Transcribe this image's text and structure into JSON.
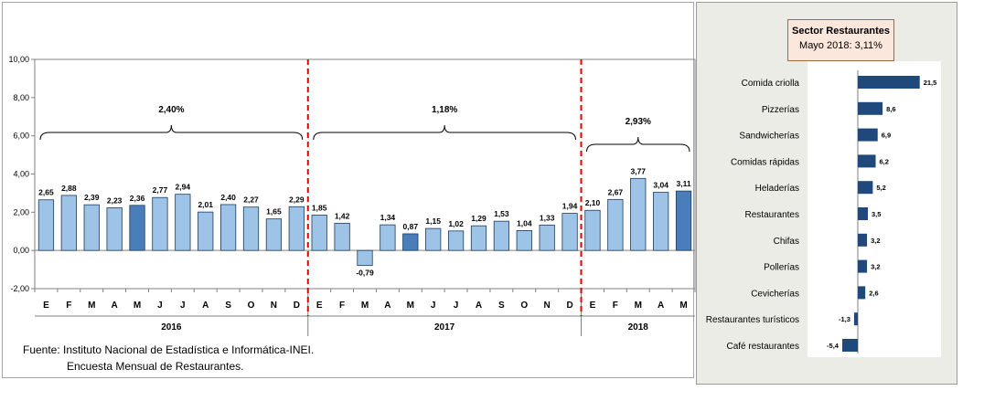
{
  "chart_data": [
    {
      "type": "bar",
      "categories": [
        "E",
        "F",
        "M",
        "A",
        "M",
        "J",
        "J",
        "A",
        "S",
        "O",
        "N",
        "D",
        "E",
        "F",
        "M",
        "A",
        "M",
        "J",
        "J",
        "A",
        "S",
        "O",
        "N",
        "D",
        "E",
        "F",
        "M",
        "A",
        "M"
      ],
      "values": [
        2.65,
        2.88,
        2.39,
        2.23,
        2.36,
        2.77,
        2.94,
        2.01,
        2.4,
        2.27,
        1.65,
        2.29,
        1.85,
        1.42,
        -0.79,
        1.34,
        0.87,
        1.15,
        1.02,
        1.29,
        1.53,
        1.04,
        1.33,
        1.94,
        2.1,
        2.67,
        3.77,
        3.04,
        3.11
      ],
      "labels": [
        "2,65",
        "2,88",
        "2,39",
        "2,23",
        "2,36",
        "2,77",
        "2,94",
        "2,01",
        "2,40",
        "2,27",
        "1,65",
        "2,29",
        "1,85",
        "1,42",
        "-0,79",
        "1,34",
        "0,87",
        "1,15",
        "1,02",
        "1,29",
        "1,53",
        "1,04",
        "1,33",
        "1,94",
        "2,10",
        "2,67",
        "3,77",
        "3,04",
        "3,11"
      ],
      "highlight": [
        4,
        16,
        28
      ],
      "years": [
        {
          "label": "2016",
          "start": 0,
          "end": 11,
          "avg": "2,40%"
        },
        {
          "label": "2017",
          "start": 12,
          "end": 23,
          "avg": "1,18%"
        },
        {
          "label": "2018",
          "start": 24,
          "end": 28,
          "avg": "2,93%"
        }
      ],
      "yticks": [
        "-2,00",
        "0,00",
        "2,00",
        "4,00",
        "6,00",
        "8,00",
        "10,00"
      ],
      "ylim": [
        -2,
        10
      ],
      "bar_color": "#9dc3e6",
      "highlight_color": "#4a7ebb",
      "separator_color": "#e00000"
    },
    {
      "type": "bar",
      "orientation": "horizontal",
      "title": "Sector Restaurantes",
      "subtitle": "Mayo 2018: 3,11%",
      "categories": [
        "Comida criolla",
        "Pizzerías",
        "Sandwicherías",
        "Comidas rápidas",
        "Heladerías",
        "Restaurantes",
        "Chifas",
        "Pollerías",
        "Cevicherías",
        "Restaurantes turísticos",
        "Café restaurantes"
      ],
      "values": [
        21.5,
        8.6,
        6.9,
        6.2,
        5.2,
        3.5,
        3.2,
        3.2,
        2.6,
        -1.3,
        -5.4
      ],
      "labels": [
        "21,5",
        "8,6",
        "6,9",
        "6,2",
        "5,2",
        "3,5",
        "3,2",
        "3,2",
        "2,6",
        "-1,3",
        "-5,4"
      ],
      "bar_color": "#1f497d"
    }
  ],
  "source": {
    "line1": "Fuente: Instituto Nacional de Estadística e Informática-INEI.",
    "line2": "Encuesta Mensual de  Restaurantes."
  }
}
